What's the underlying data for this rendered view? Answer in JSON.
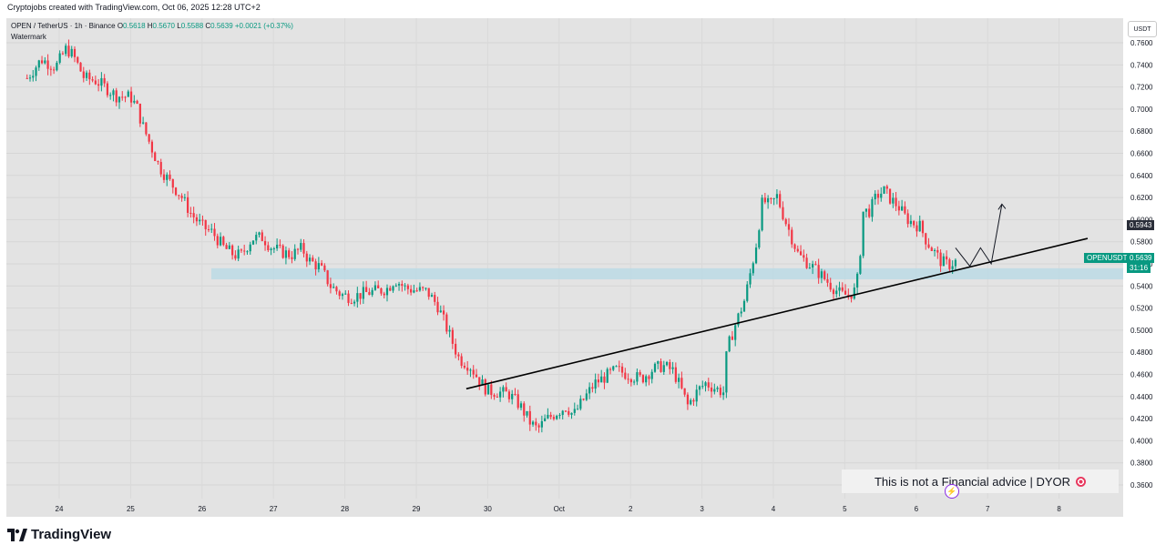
{
  "caption": "Cryptojobs created with TradingView.com, Oct 06, 2025 12:28 UTC+2",
  "legend": {
    "symbol": "OPEN / TetherUS · 1h · Binance",
    "o_label": "O",
    "o_value": "0.5618",
    "h_label": "H",
    "h_value": "0.5670",
    "l_label": "L",
    "l_value": "0.5588",
    "c_label": "C",
    "c_value": "0.5639",
    "change": "+0.0021 (+0.37%)",
    "watermark": "Watermark"
  },
  "price_axis": {
    "currency_button": "USDT",
    "labels": [
      "0.7600",
      "0.7400",
      "0.7200",
      "0.7000",
      "0.6800",
      "0.6600",
      "0.6400",
      "0.6200",
      "0.6000",
      "0.5800",
      "0.5600",
      "0.5400",
      "0.5200",
      "0.5000",
      "0.4800",
      "0.4600",
      "0.4400",
      "0.4200",
      "0.4000",
      "0.3800",
      "0.3600"
    ],
    "marker_price": "0.5943",
    "symbol_tag": "OPENUSDT",
    "current_price": "0.5639",
    "countdown": "31:16"
  },
  "time_axis_labels": [
    "24",
    "25",
    "26",
    "27",
    "28",
    "29",
    "30",
    "Oct",
    "2",
    "3",
    "4",
    "5",
    "6",
    "7",
    "8"
  ],
  "disclaimer": "This is not a Financial advice | DYOR",
  "brand": "TradingView",
  "colors": {
    "up": "#089981",
    "down": "#f23645",
    "zone": "#b7d9e6",
    "background": "#e3e3e3",
    "trendline": "#000000"
  },
  "chart_data": {
    "type": "candlestick",
    "title": "OPEN / TetherUS · 1h · Binance",
    "interval": "1h",
    "ylim": [
      0.35,
      0.77
    ],
    "x_range": [
      23.5,
      8.6
    ],
    "support_zone": [
      0.546,
      0.556
    ],
    "trendline": {
      "from": [
        "Sep 29.7",
        0.447
      ],
      "to": [
        "Oct 8.4",
        0.583
      ]
    },
    "projection": [
      [
        6.55,
        0.5745
      ],
      [
        6.75,
        0.558
      ],
      [
        6.9,
        0.5745
      ],
      [
        7.05,
        0.56
      ],
      [
        7.2,
        0.614
      ]
    ],
    "close_path": [
      [
        23.55,
        0.728
      ],
      [
        23.75,
        0.745
      ],
      [
        23.95,
        0.738
      ],
      [
        24.1,
        0.755
      ],
      [
        24.2,
        0.748
      ],
      [
        24.35,
        0.728
      ],
      [
        24.5,
        0.726
      ],
      [
        24.6,
        0.722
      ],
      [
        24.8,
        0.712
      ],
      [
        25.0,
        0.711
      ],
      [
        25.1,
        0.7
      ],
      [
        25.15,
        0.688
      ],
      [
        25.25,
        0.672
      ],
      [
        25.4,
        0.648
      ],
      [
        25.55,
        0.634
      ],
      [
        25.7,
        0.622
      ],
      [
        25.85,
        0.605
      ],
      [
        26.0,
        0.594
      ],
      [
        26.15,
        0.588
      ],
      [
        26.3,
        0.575
      ],
      [
        26.45,
        0.568
      ],
      [
        26.55,
        0.568
      ],
      [
        26.7,
        0.583
      ],
      [
        26.85,
        0.584
      ],
      [
        26.95,
        0.576
      ],
      [
        27.1,
        0.571
      ],
      [
        27.25,
        0.568
      ],
      [
        27.4,
        0.574
      ],
      [
        27.5,
        0.563
      ],
      [
        27.65,
        0.557
      ],
      [
        27.8,
        0.54
      ],
      [
        27.95,
        0.532
      ],
      [
        28.1,
        0.53
      ],
      [
        28.25,
        0.533
      ],
      [
        28.4,
        0.535
      ],
      [
        28.5,
        0.536
      ],
      [
        28.6,
        0.538
      ],
      [
        28.7,
        0.546
      ],
      [
        28.85,
        0.538
      ],
      [
        29.0,
        0.536
      ],
      [
        29.15,
        0.535
      ],
      [
        29.3,
        0.522
      ],
      [
        29.45,
        0.498
      ],
      [
        29.6,
        0.474
      ],
      [
        29.75,
        0.468
      ],
      [
        29.9,
        0.453
      ],
      [
        30.0,
        0.445
      ],
      [
        30.15,
        0.444
      ],
      [
        30.3,
        0.442
      ],
      [
        30.45,
        0.432
      ],
      [
        30.6,
        0.416
      ],
      [
        30.7,
        0.41
      ],
      [
        30.8,
        0.418
      ],
      [
        30.95,
        0.425
      ],
      [
        31.1,
        0.431
      ],
      [
        31.2,
        0.423
      ],
      [
        31.35,
        0.438
      ],
      [
        31.5,
        0.452
      ],
      [
        31.65,
        0.458
      ],
      [
        31.8,
        0.464
      ],
      [
        32.0,
        0.459
      ],
      [
        32.15,
        0.456
      ],
      [
        32.3,
        0.464
      ],
      [
        32.45,
        0.468
      ],
      [
        32.6,
        0.463
      ],
      [
        32.7,
        0.448
      ],
      [
        32.8,
        0.432
      ],
      [
        32.95,
        0.446
      ],
      [
        33.05,
        0.452
      ],
      [
        33.2,
        0.447
      ],
      [
        33.3,
        0.444
      ],
      [
        33.35,
        0.482
      ],
      [
        33.45,
        0.502
      ],
      [
        33.6,
        0.528
      ],
      [
        33.75,
        0.574
      ],
      [
        33.85,
        0.618
      ],
      [
        33.95,
        0.612
      ],
      [
        34.05,
        0.621
      ],
      [
        34.15,
        0.602
      ],
      [
        34.25,
        0.585
      ],
      [
        34.35,
        0.568
      ],
      [
        34.5,
        0.56
      ],
      [
        34.65,
        0.551
      ],
      [
        34.8,
        0.541
      ],
      [
        34.95,
        0.532
      ],
      [
        35.05,
        0.532
      ],
      [
        35.15,
        0.536
      ],
      [
        35.2,
        0.555
      ],
      [
        35.25,
        0.607
      ],
      [
        35.35,
        0.608
      ],
      [
        35.45,
        0.622
      ],
      [
        35.55,
        0.626
      ],
      [
        35.65,
        0.618
      ],
      [
        35.75,
        0.612
      ],
      [
        35.85,
        0.602
      ],
      [
        35.95,
        0.597
      ],
      [
        36.05,
        0.594
      ],
      [
        36.15,
        0.58
      ],
      [
        36.25,
        0.571
      ],
      [
        36.35,
        0.562
      ],
      [
        36.45,
        0.559
      ],
      [
        36.55,
        0.562
      ]
    ]
  }
}
